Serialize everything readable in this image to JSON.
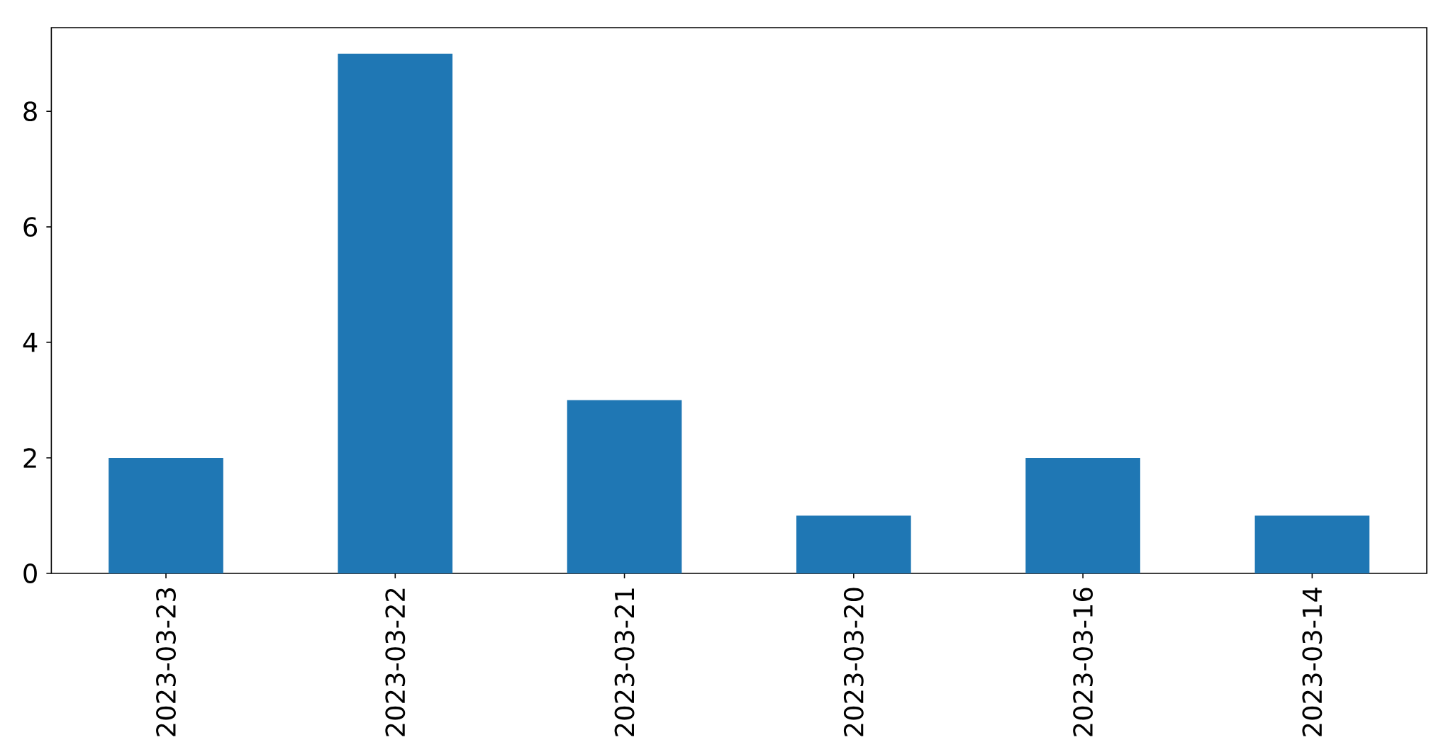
{
  "chart_data": {
    "type": "bar",
    "categories": [
      "2023-03-23",
      "2023-03-22",
      "2023-03-21",
      "2023-03-20",
      "2023-03-16",
      "2023-03-14"
    ],
    "values": [
      2,
      9,
      3,
      1,
      2,
      1
    ],
    "color": "#1f77b4",
    "ylim": [
      0,
      9.45
    ],
    "yticks": [
      0,
      2,
      4,
      6,
      8
    ]
  }
}
